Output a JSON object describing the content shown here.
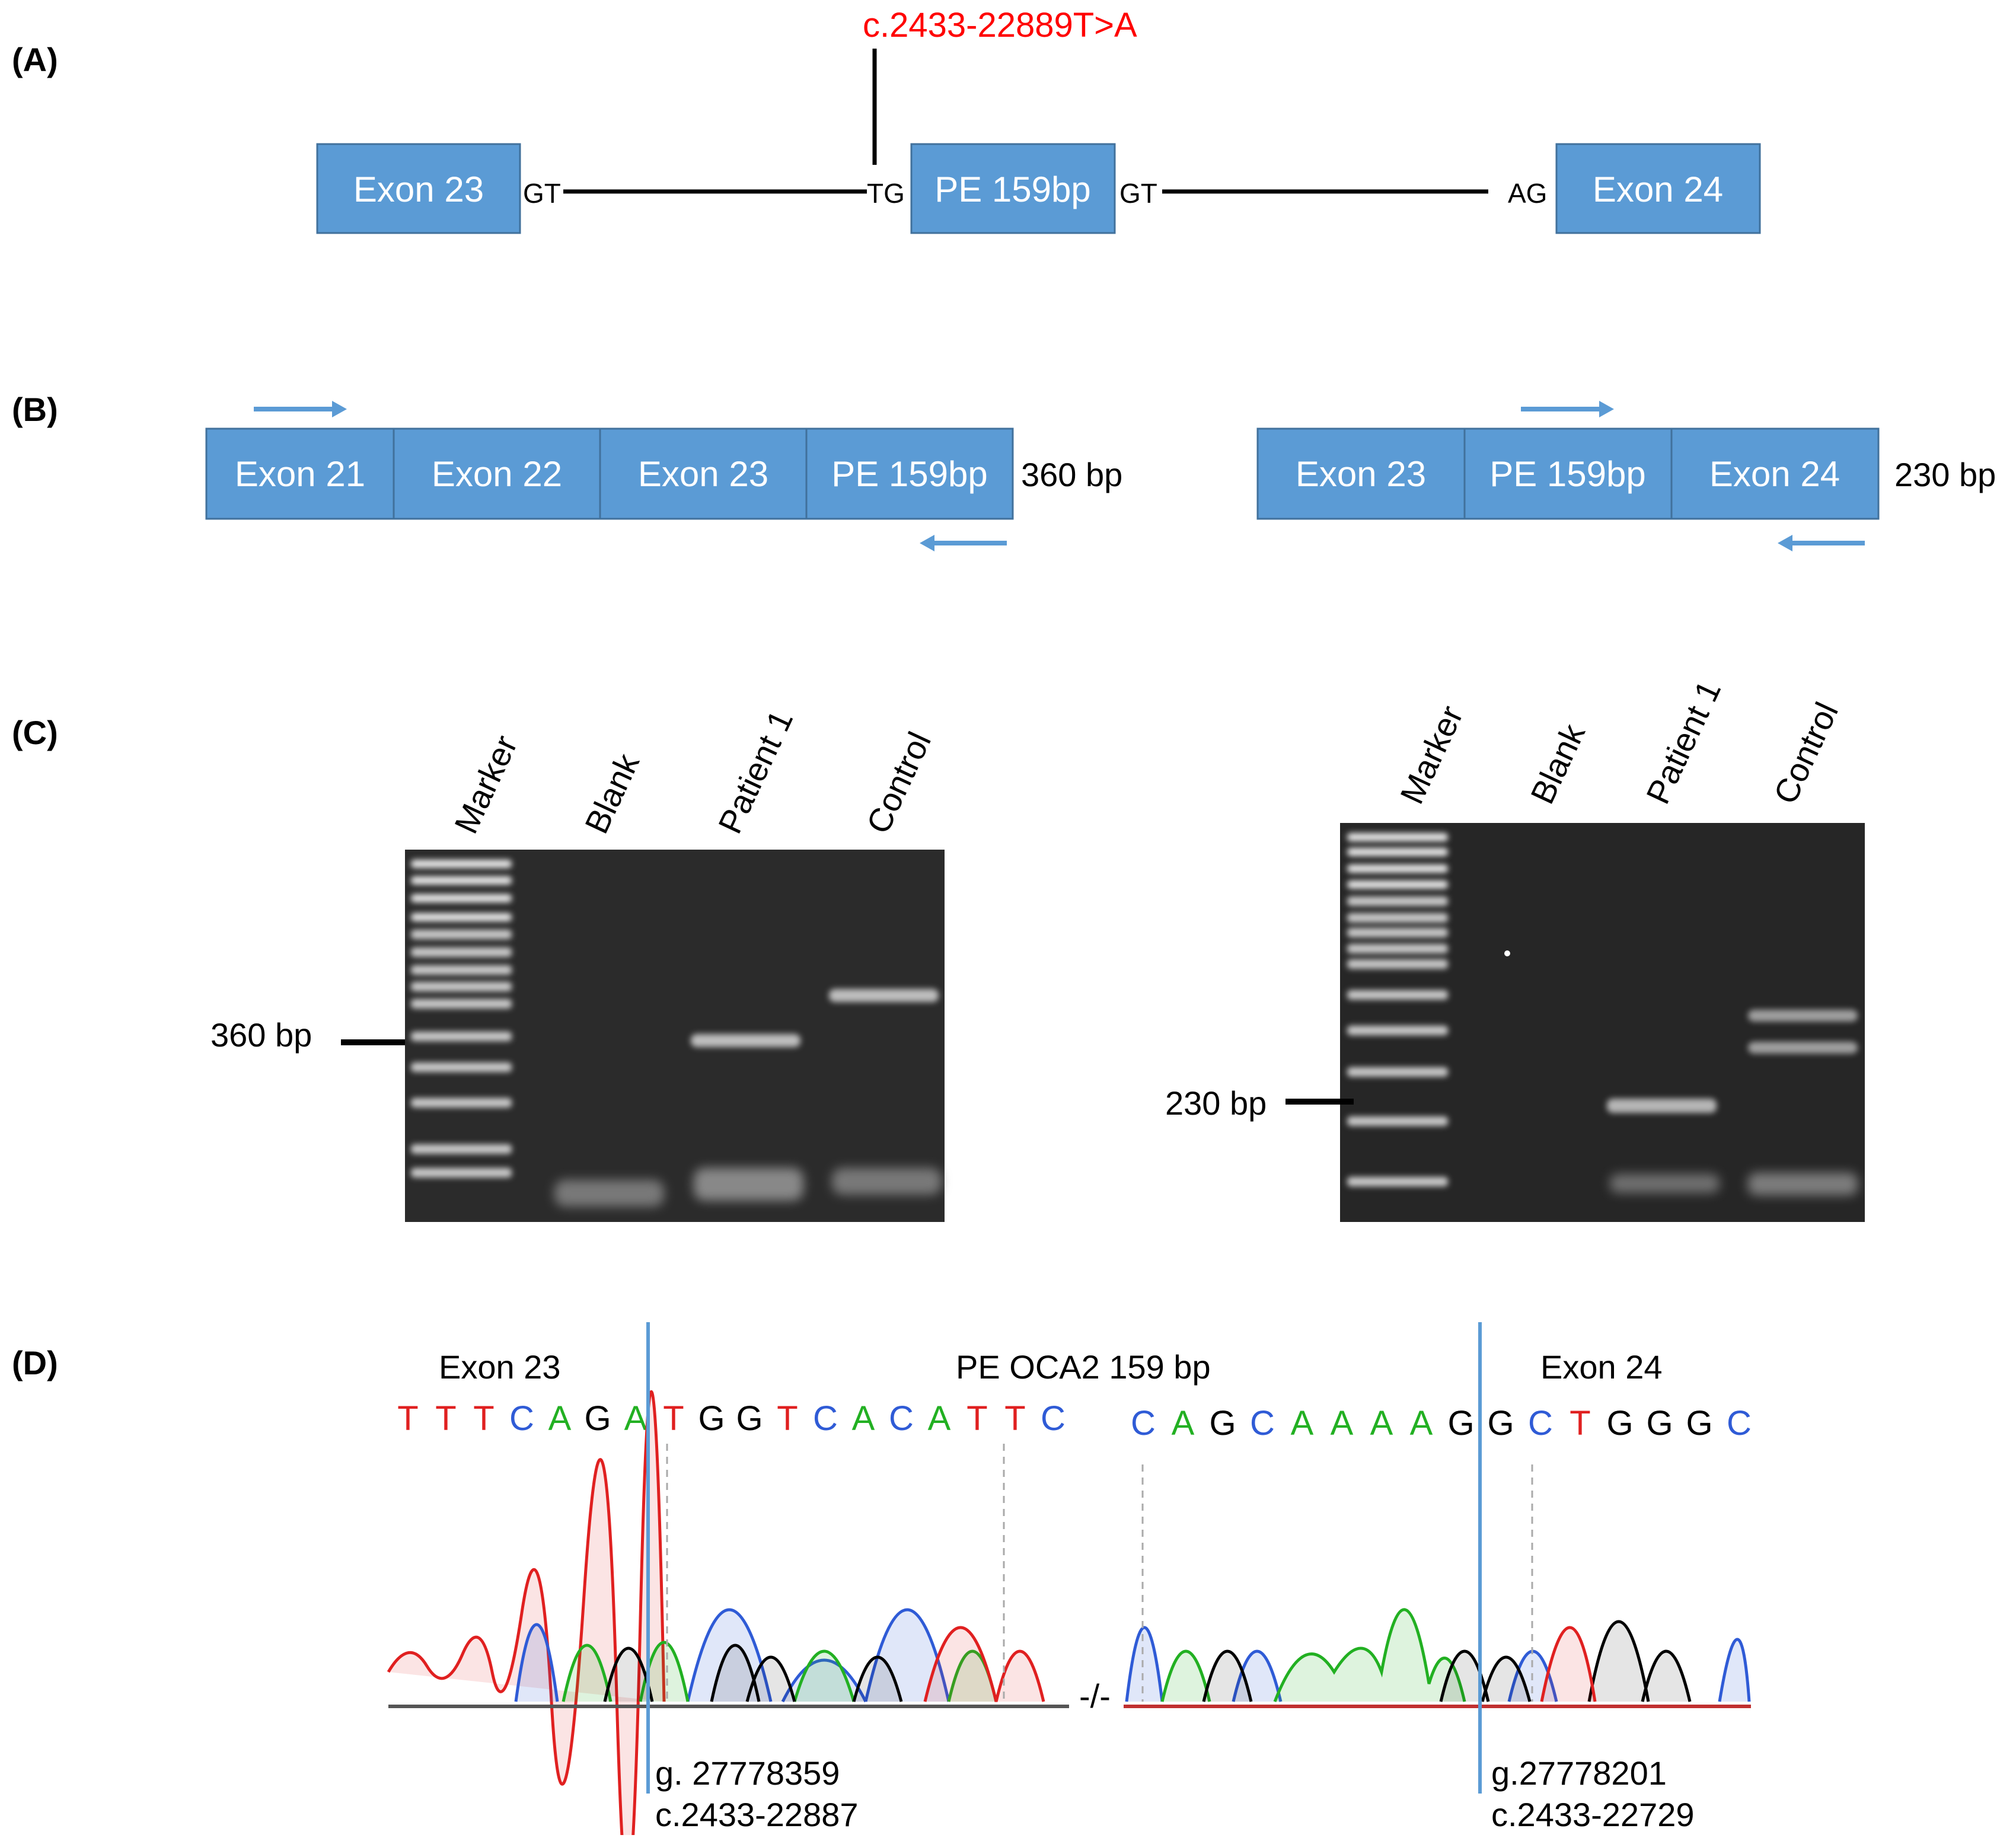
{
  "panel_a": {
    "label": "(A)",
    "mutation": "c.2433-22889T>A",
    "exons": [
      "Exon 23",
      "PE 159bp",
      "Exon 24"
    ],
    "splice_sites": [
      "GT",
      "TG",
      "GT",
      "AG"
    ]
  },
  "panel_b": {
    "label": "(B)",
    "left_exons": [
      "Exon 21",
      "Exon 22",
      "Exon 23",
      "PE 159bp"
    ],
    "left_size": "360 bp",
    "right_exons": [
      "Exon 23",
      "PE 159bp",
      "Exon 24"
    ],
    "right_size": "230 bp"
  },
  "panel_c": {
    "label": "(C)",
    "lanes": [
      "Marker",
      "Blank",
      "Patient 1",
      "Control"
    ],
    "left_marker": "360 bp",
    "right_marker": "230 bp"
  },
  "panel_d": {
    "label": "(D)",
    "region_exon23": "Exon 23",
    "region_pe": "PE OCA2 159 bp",
    "region_exon24": "Exon 24",
    "seq_left": [
      "T",
      "T",
      "T",
      "C",
      "A",
      "G",
      "A",
      "T",
      "G",
      "G",
      "T",
      "C",
      "A",
      "C",
      "A",
      "T",
      "T",
      "C"
    ],
    "seq_right": [
      "C",
      "A",
      "G",
      "C",
      "A",
      "A",
      "A",
      "A",
      "G",
      "G",
      "C",
      "T",
      "G",
      "G",
      "G",
      "C"
    ],
    "break_symbol": "-/-",
    "coord_left_g": "g. 27778359",
    "coord_left_c": "c.2433-22887",
    "coord_right_g": "g.27778201",
    "coord_right_c": "c.2433-22729"
  },
  "colors": {
    "exon_fill": "#5b9bd5",
    "mutation": "#ff0000",
    "arrow": "#5b9bd5",
    "base_A": "#22b022",
    "base_C": "#2f5bd6",
    "base_G": "#000000",
    "base_T": "#e02020"
  }
}
